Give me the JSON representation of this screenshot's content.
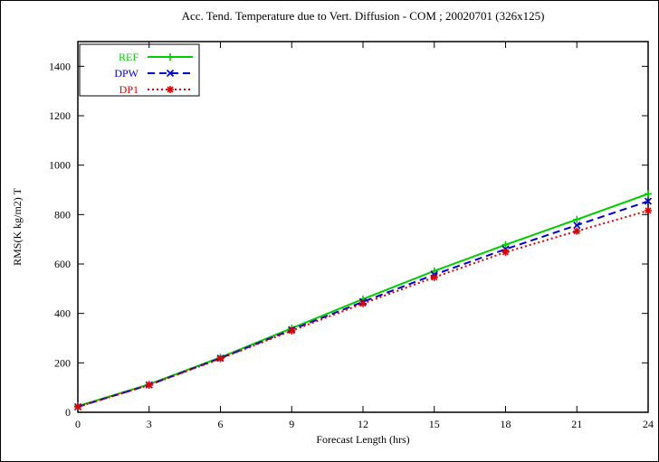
{
  "window": {
    "background": "#ffffff",
    "border_color": "#000000"
  },
  "chart_data": {
    "type": "line",
    "title": "Acc. Tend. Temperature due to Vert. Diffusion - COM ; 20020701 (326x125)",
    "xlabel": "Forecast Length (hrs)",
    "ylabel": "RMS(K kg/m2) T",
    "xlim": [
      0,
      24
    ],
    "ylim": [
      0,
      1500
    ],
    "xticks": [
      0,
      3,
      6,
      9,
      12,
      15,
      18,
      21,
      24
    ],
    "yticks": [
      0,
      200,
      400,
      600,
      800,
      1000,
      1200,
      1400
    ],
    "grid": false,
    "legend_position": "top-left",
    "x": [
      0,
      3,
      6,
      9,
      12,
      15,
      18,
      21,
      24
    ],
    "series": [
      {
        "name": "REF",
        "color": "#00cc00",
        "style": "solid",
        "marker": "plus",
        "values": [
          25,
          113,
          222,
          340,
          458,
          572,
          678,
          780,
          884
        ]
      },
      {
        "name": "DPW",
        "color": "#0000cc",
        "style": "dashed",
        "marker": "cross",
        "values": [
          22,
          111,
          219,
          334,
          447,
          557,
          660,
          757,
          854
        ]
      },
      {
        "name": "DP1",
        "color": "#dd0000",
        "style": "dotted",
        "marker": "asterisk",
        "values": [
          22,
          110,
          217,
          330,
          440,
          546,
          648,
          733,
          816
        ]
      }
    ]
  }
}
